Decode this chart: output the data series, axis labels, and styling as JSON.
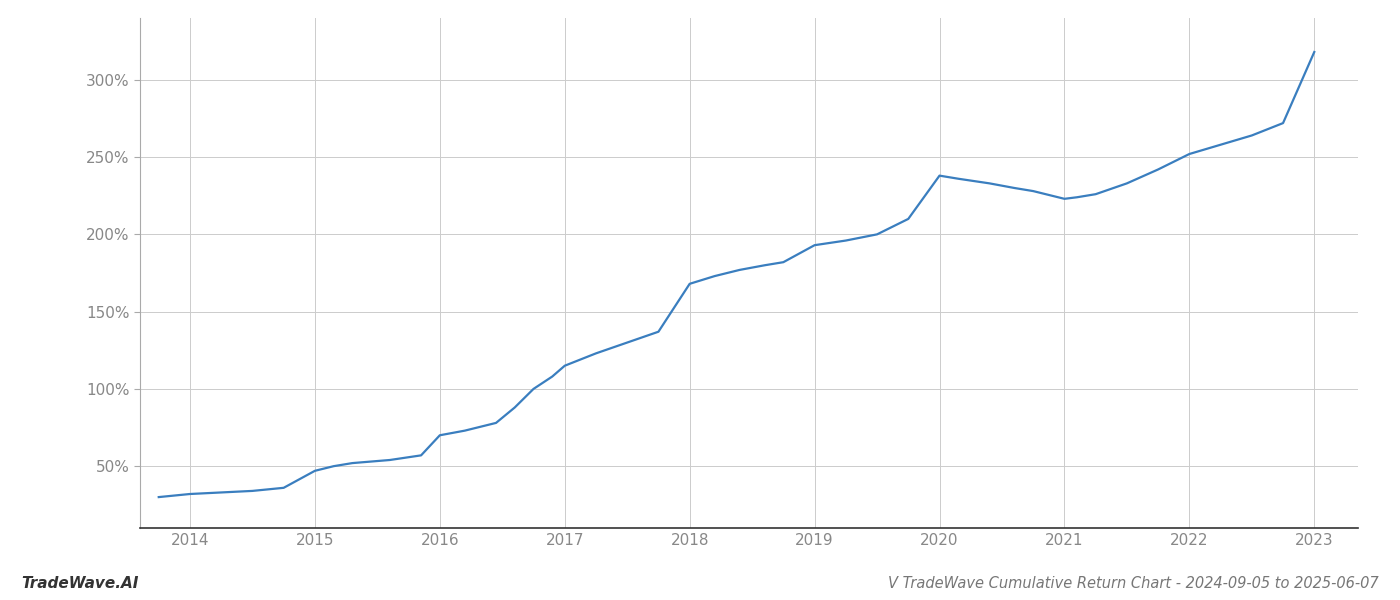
{
  "title": "V TradeWave Cumulative Return Chart - 2024-09-05 to 2025-06-07",
  "watermark": "TradeWave.AI",
  "line_color": "#3a7ebf",
  "background_color": "#ffffff",
  "grid_color": "#cccccc",
  "x_years": [
    2014,
    2015,
    2016,
    2017,
    2018,
    2019,
    2020,
    2021,
    2022,
    2023
  ],
  "data_points": [
    [
      2013.75,
      30
    ],
    [
      2014.0,
      32
    ],
    [
      2014.25,
      33
    ],
    [
      2014.5,
      34
    ],
    [
      2014.75,
      36
    ],
    [
      2015.0,
      47
    ],
    [
      2015.15,
      50
    ],
    [
      2015.3,
      52
    ],
    [
      2015.6,
      54
    ],
    [
      2015.85,
      57
    ],
    [
      2016.0,
      70
    ],
    [
      2016.2,
      73
    ],
    [
      2016.45,
      78
    ],
    [
      2016.6,
      88
    ],
    [
      2016.75,
      100
    ],
    [
      2016.9,
      108
    ],
    [
      2017.0,
      115
    ],
    [
      2017.25,
      123
    ],
    [
      2017.5,
      130
    ],
    [
      2017.75,
      137
    ],
    [
      2018.0,
      168
    ],
    [
      2018.2,
      173
    ],
    [
      2018.4,
      177
    ],
    [
      2018.6,
      180
    ],
    [
      2018.75,
      182
    ],
    [
      2019.0,
      193
    ],
    [
      2019.25,
      196
    ],
    [
      2019.5,
      200
    ],
    [
      2019.75,
      210
    ],
    [
      2020.0,
      238
    ],
    [
      2020.15,
      236
    ],
    [
      2020.4,
      233
    ],
    [
      2020.6,
      230
    ],
    [
      2020.75,
      228
    ],
    [
      2021.0,
      223
    ],
    [
      2021.1,
      224
    ],
    [
      2021.25,
      226
    ],
    [
      2021.5,
      233
    ],
    [
      2021.75,
      242
    ],
    [
      2022.0,
      252
    ],
    [
      2022.25,
      258
    ],
    [
      2022.5,
      264
    ],
    [
      2022.75,
      272
    ],
    [
      2023.0,
      318
    ]
  ],
  "yticks": [
    50,
    100,
    150,
    200,
    250,
    300
  ],
  "ylim": [
    10,
    340
  ],
  "xlim": [
    2013.6,
    2023.35
  ],
  "title_fontsize": 10.5,
  "watermark_fontsize": 11,
  "tick_fontsize": 11,
  "line_width": 1.6
}
